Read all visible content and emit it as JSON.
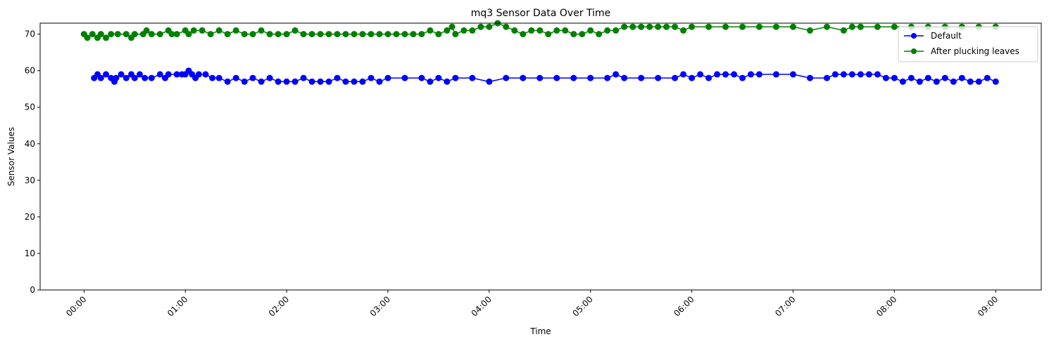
{
  "chart_data": {
    "type": "line",
    "title": "mq3 Sensor Data Over Time",
    "xlabel": "Time",
    "ylabel": "Sensor Values",
    "x_tick_labels": [
      "00:00",
      "01:00",
      "02:00",
      "03:00",
      "04:00",
      "05:00",
      "06:00",
      "07:00",
      "08:00",
      "09:00"
    ],
    "y_ticks": [
      0,
      10,
      20,
      30,
      40,
      50,
      60,
      70
    ],
    "ylim": [
      0,
      73
    ],
    "xlim_minutes": [
      -26,
      567
    ],
    "legend_position": "top-right",
    "marker": "circle",
    "series": [
      {
        "name": "Default",
        "color": "#0000ff",
        "points": [
          [
            6,
            58
          ],
          [
            8,
            59
          ],
          [
            10,
            58
          ],
          [
            13,
            59
          ],
          [
            16,
            58
          ],
          [
            18,
            57
          ],
          [
            19,
            58
          ],
          [
            22,
            59
          ],
          [
            25,
            58
          ],
          [
            28,
            59
          ],
          [
            30,
            58
          ],
          [
            33,
            59
          ],
          [
            36,
            58
          ],
          [
            40,
            58
          ],
          [
            45,
            59
          ],
          [
            48,
            58
          ],
          [
            50,
            59
          ],
          [
            55,
            59
          ],
          [
            58,
            59
          ],
          [
            60,
            59
          ],
          [
            62,
            60
          ],
          [
            64,
            59
          ],
          [
            66,
            58
          ],
          [
            68,
            59
          ],
          [
            72,
            59
          ],
          [
            76,
            58
          ],
          [
            80,
            58
          ],
          [
            85,
            57
          ],
          [
            90,
            58
          ],
          [
            95,
            57
          ],
          [
            100,
            58
          ],
          [
            105,
            57
          ],
          [
            110,
            58
          ],
          [
            115,
            57
          ],
          [
            120,
            57
          ],
          [
            125,
            57
          ],
          [
            130,
            58
          ],
          [
            135,
            57
          ],
          [
            140,
            57
          ],
          [
            145,
            57
          ],
          [
            150,
            58
          ],
          [
            155,
            57
          ],
          [
            160,
            57
          ],
          [
            165,
            57
          ],
          [
            170,
            58
          ],
          [
            175,
            57
          ],
          [
            180,
            58
          ],
          [
            190,
            58
          ],
          [
            200,
            58
          ],
          [
            205,
            57
          ],
          [
            210,
            58
          ],
          [
            215,
            57
          ],
          [
            220,
            58
          ],
          [
            230,
            58
          ],
          [
            240,
            57
          ],
          [
            250,
            58
          ],
          [
            260,
            58
          ],
          [
            270,
            58
          ],
          [
            280,
            58
          ],
          [
            290,
            58
          ],
          [
            300,
            58
          ],
          [
            310,
            58
          ],
          [
            315,
            59
          ],
          [
            320,
            58
          ],
          [
            330,
            58
          ],
          [
            340,
            58
          ],
          [
            350,
            58
          ],
          [
            355,
            59
          ],
          [
            360,
            58
          ],
          [
            365,
            59
          ],
          [
            370,
            58
          ],
          [
            375,
            59
          ],
          [
            380,
            59
          ],
          [
            385,
            59
          ],
          [
            390,
            58
          ],
          [
            395,
            59
          ],
          [
            400,
            59
          ],
          [
            410,
            59
          ],
          [
            420,
            59
          ],
          [
            430,
            58
          ],
          [
            440,
            58
          ],
          [
            445,
            59
          ],
          [
            450,
            59
          ],
          [
            455,
            59
          ],
          [
            460,
            59
          ],
          [
            465,
            59
          ],
          [
            470,
            59
          ],
          [
            475,
            58
          ],
          [
            480,
            58
          ],
          [
            485,
            57
          ],
          [
            490,
            58
          ],
          [
            495,
            57
          ],
          [
            500,
            58
          ],
          [
            505,
            57
          ],
          [
            510,
            58
          ],
          [
            515,
            57
          ],
          [
            520,
            58
          ],
          [
            525,
            57
          ],
          [
            530,
            57
          ],
          [
            535,
            58
          ],
          [
            540,
            57
          ]
        ]
      },
      {
        "name": "After plucking leaves",
        "color": "#008000",
        "points": [
          [
            0,
            70
          ],
          [
            2,
            69
          ],
          [
            5,
            70
          ],
          [
            8,
            69
          ],
          [
            10,
            70
          ],
          [
            13,
            69
          ],
          [
            16,
            70
          ],
          [
            20,
            70
          ],
          [
            25,
            70
          ],
          [
            28,
            69
          ],
          [
            30,
            70
          ],
          [
            35,
            70
          ],
          [
            37,
            71
          ],
          [
            40,
            70
          ],
          [
            45,
            70
          ],
          [
            50,
            71
          ],
          [
            52,
            70
          ],
          [
            55,
            70
          ],
          [
            60,
            71
          ],
          [
            62,
            70
          ],
          [
            65,
            71
          ],
          [
            70,
            71
          ],
          [
            75,
            70
          ],
          [
            80,
            71
          ],
          [
            85,
            70
          ],
          [
            90,
            71
          ],
          [
            95,
            70
          ],
          [
            100,
            70
          ],
          [
            105,
            71
          ],
          [
            110,
            70
          ],
          [
            115,
            70
          ],
          [
            120,
            70
          ],
          [
            125,
            71
          ],
          [
            130,
            70
          ],
          [
            135,
            70
          ],
          [
            140,
            70
          ],
          [
            145,
            70
          ],
          [
            150,
            70
          ],
          [
            155,
            70
          ],
          [
            160,
            70
          ],
          [
            165,
            70
          ],
          [
            170,
            70
          ],
          [
            175,
            70
          ],
          [
            180,
            70
          ],
          [
            185,
            70
          ],
          [
            190,
            70
          ],
          [
            195,
            70
          ],
          [
            200,
            70
          ],
          [
            205,
            71
          ],
          [
            210,
            70
          ],
          [
            215,
            71
          ],
          [
            218,
            72
          ],
          [
            220,
            70
          ],
          [
            225,
            71
          ],
          [
            230,
            71
          ],
          [
            235,
            72
          ],
          [
            240,
            72
          ],
          [
            245,
            73
          ],
          [
            250,
            72
          ],
          [
            255,
            71
          ],
          [
            260,
            70
          ],
          [
            265,
            71
          ],
          [
            270,
            71
          ],
          [
            275,
            70
          ],
          [
            280,
            71
          ],
          [
            285,
            71
          ],
          [
            290,
            70
          ],
          [
            295,
            70
          ],
          [
            300,
            71
          ],
          [
            305,
            70
          ],
          [
            310,
            71
          ],
          [
            315,
            71
          ],
          [
            320,
            72
          ],
          [
            325,
            72
          ],
          [
            330,
            72
          ],
          [
            335,
            72
          ],
          [
            340,
            72
          ],
          [
            345,
            72
          ],
          [
            350,
            72
          ],
          [
            355,
            71
          ],
          [
            360,
            72
          ],
          [
            370,
            72
          ],
          [
            380,
            72
          ],
          [
            390,
            72
          ],
          [
            400,
            72
          ],
          [
            410,
            72
          ],
          [
            420,
            72
          ],
          [
            430,
            71
          ],
          [
            440,
            72
          ],
          [
            450,
            71
          ],
          [
            455,
            72
          ],
          [
            460,
            72
          ],
          [
            470,
            72
          ],
          [
            480,
            72
          ],
          [
            490,
            72
          ],
          [
            500,
            72
          ],
          [
            510,
            72
          ],
          [
            520,
            72
          ],
          [
            530,
            72
          ],
          [
            540,
            72
          ]
        ]
      }
    ]
  }
}
